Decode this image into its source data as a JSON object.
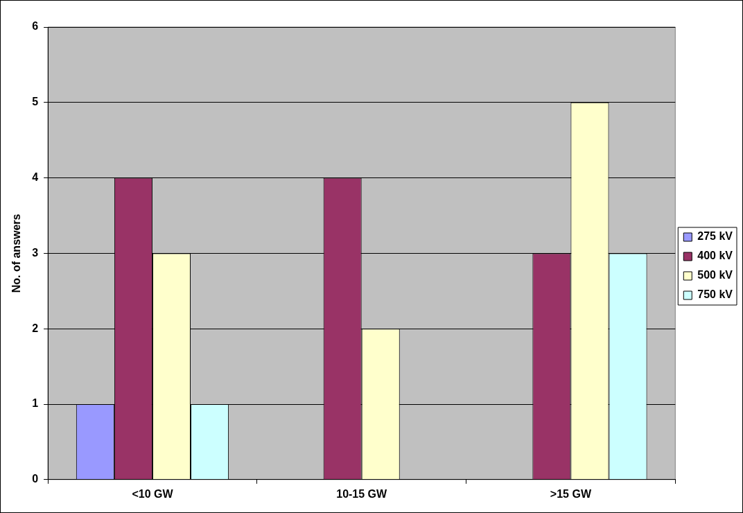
{
  "chart_data": {
    "type": "bar",
    "ylabel": "No. of answers",
    "categories": [
      "<10 GW",
      "10-15 GW",
      ">15 GW"
    ],
    "series": [
      {
        "name": "275 kV",
        "color": "#9999ff",
        "values": [
          1,
          null,
          null
        ]
      },
      {
        "name": "400 kV",
        "color": "#993366",
        "values": [
          4,
          4,
          3
        ]
      },
      {
        "name": "500 kV",
        "color": "#ffffcc",
        "values": [
          3,
          2,
          5
        ]
      },
      {
        "name": "750 kV",
        "color": "#ccffff",
        "values": [
          1,
          null,
          3
        ]
      }
    ],
    "ylim": [
      0,
      6
    ],
    "yticks": [
      0,
      1,
      2,
      3,
      4,
      5,
      6
    ],
    "grid": "y",
    "legend": "right"
  }
}
